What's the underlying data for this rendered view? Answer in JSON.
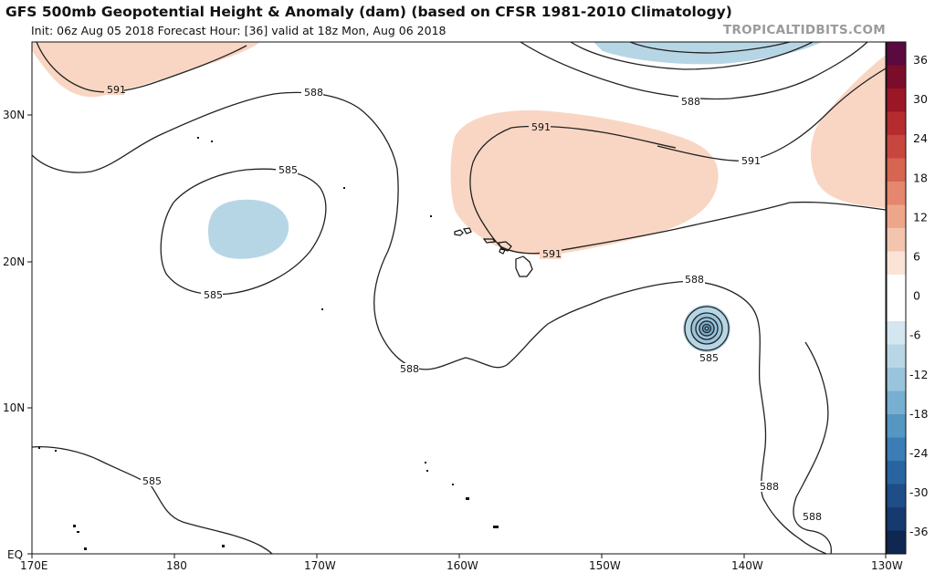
{
  "header": {
    "title": "GFS 500mb Geopotential Height & Anomaly (dam) (based on CFSR 1981-2010 Climatology)",
    "subtitle": "Init: 06z Aug 05 2018   Forecast Hour: [36]   valid at 18z Mon, Aug 06 2018",
    "brand": "TROPICALTIDBITS.COM"
  },
  "axes": {
    "lat_labels": [
      "30N",
      "20N",
      "10N",
      "EQ"
    ],
    "lon_labels": [
      "170E",
      "180",
      "170W",
      "160W",
      "150W",
      "140W",
      "130W"
    ]
  },
  "contour_labels": {
    "c591_nw": "591",
    "c588_north": "588",
    "c591_hawaii_top": "591",
    "c591_ne": "591",
    "c585_low": "585",
    "c585_low_bottom": "585",
    "c591_hawaii_bottom": "591",
    "c588_trough": "588",
    "c588_east": "588",
    "c585_storm": "585",
    "c585_sw": "585",
    "c588_se": "588",
    "c588_se2": "588"
  },
  "colorbar": {
    "labels": [
      "36",
      "30",
      "24",
      "18",
      "12",
      "6",
      "0",
      "-6",
      "-12",
      "-18",
      "-24",
      "-30",
      "-36"
    ],
    "colors": [
      "#5a0a3e",
      "#7a0d2a",
      "#9b1726",
      "#b52c2f",
      "#c7463f",
      "#d66552",
      "#e4876e",
      "#eea68b",
      "#f4c5ae",
      "#fbe3d6",
      "#ffffff",
      "#ffffff",
      "#d4e6ef",
      "#b8d6e6",
      "#9ac4dc",
      "#78afd1",
      "#5596c3",
      "#3b7db4",
      "#2a64a0",
      "#1e4d88",
      "#163a6f",
      "#0f2852"
    ]
  },
  "colors": {
    "warm_anomaly": "#f9d6c3",
    "cold_anomaly": "#b7d6e5",
    "contour": "#222222"
  }
}
